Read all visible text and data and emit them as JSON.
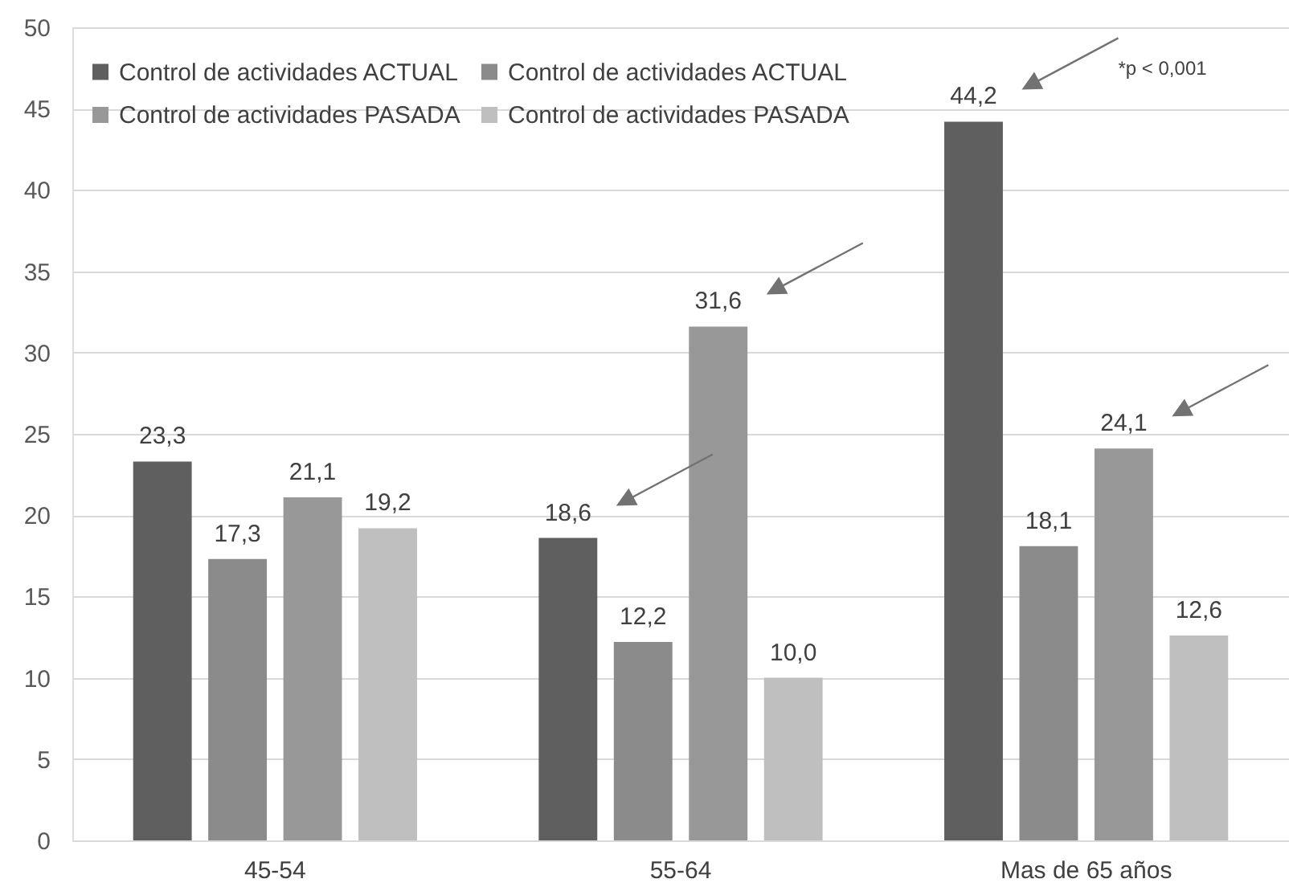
{
  "chart_data": {
    "type": "bar",
    "categories": [
      "45-54",
      "55-64",
      "Mas de 65 años"
    ],
    "series": [
      {
        "name": "Control de actividades ACTUAL",
        "color": "#5f5f5f",
        "values": [
          23.3,
          18.6,
          44.2
        ],
        "value_labels": [
          "23,3",
          "18,6",
          "44,2"
        ]
      },
      {
        "name": "Control de actividades ACTUAL",
        "color": "#8b8b8b",
        "values": [
          17.3,
          12.2,
          18.1
        ],
        "value_labels": [
          "17,3",
          "12,2",
          "18,1"
        ]
      },
      {
        "name": "Control de actividades PASADA",
        "color": "#989898",
        "values": [
          21.1,
          31.6,
          24.1
        ],
        "value_labels": [
          "21,1",
          "31,6",
          "24,1"
        ]
      },
      {
        "name": "Control de actividades PASADA",
        "color": "#bfbfbf",
        "values": [
          19.2,
          10.0,
          12.6
        ],
        "value_labels": [
          "19,2",
          "10,0",
          "12,6"
        ]
      }
    ],
    "ylim": [
      0,
      50
    ],
    "yticks": [
      0,
      5,
      10,
      15,
      20,
      25,
      30,
      35,
      40,
      45,
      50
    ],
    "grid": "y",
    "legend": "top left",
    "annotations": [
      "*p < 0,001"
    ]
  }
}
